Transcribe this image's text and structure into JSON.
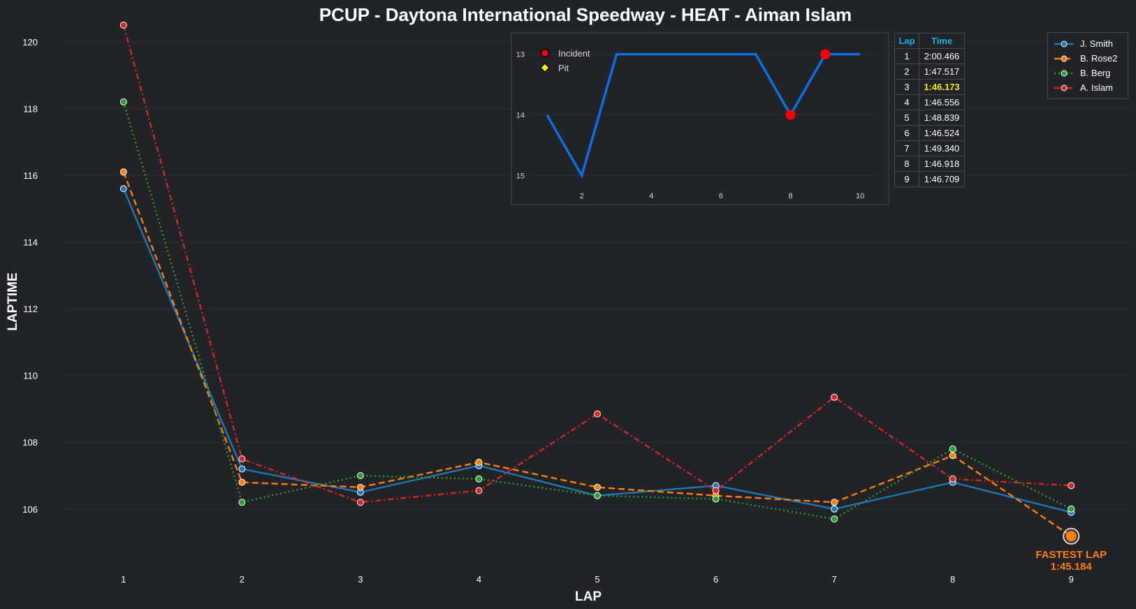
{
  "colors": {
    "background": "#212327",
    "grid": "#2c2f34",
    "table_header": "#18b4e6",
    "best_lap": "#f5e61a",
    "fastest_lap": "#ff7f0e",
    "inset_line": "#0d6fe8",
    "incident": "#ff0000",
    "pit": "#ffee00"
  },
  "chart_data": [
    {
      "type": "line",
      "title": "PCUP - Daytona International Speedway - HEAT - Aiman Islam",
      "xlabel": "LAP",
      "ylabel": "LAPTIME",
      "x": [
        1,
        2,
        3,
        4,
        5,
        6,
        7,
        8,
        9
      ],
      "xlim": [
        0.5,
        9.5
      ],
      "ylim": [
        104.3,
        120.5
      ],
      "y_ticks": [
        106,
        108,
        110,
        112,
        114,
        116,
        118,
        120
      ],
      "legend_position": "top-right",
      "series": [
        {
          "name": "J. Smith",
          "color": "#1f77b4",
          "dash": "solid",
          "values": [
            115.6,
            107.2,
            106.5,
            107.3,
            106.4,
            106.7,
            106.0,
            106.8,
            105.9
          ]
        },
        {
          "name": "B. Rose2",
          "color": "#ff7f0e",
          "dash": "dashed",
          "values": [
            116.1,
            106.8,
            106.65,
            107.4,
            106.65,
            106.4,
            106.2,
            107.6,
            105.184
          ]
        },
        {
          "name": "B. Berg",
          "color": "#2ca02c",
          "dash": "dotted",
          "values": [
            118.2,
            106.2,
            107.0,
            106.9,
            106.4,
            106.3,
            105.7,
            107.8,
            106.0
          ]
        },
        {
          "name": "A. Islam",
          "color": "#d62728",
          "dash": "dashdot",
          "values": [
            120.5,
            107.5,
            106.2,
            106.55,
            108.85,
            106.55,
            109.35,
            106.9,
            106.7
          ]
        }
      ],
      "annotations": [
        {
          "text": "FASTEST LAP",
          "value_text": "1:45.184",
          "x": 9,
          "y": 105.184,
          "series": "B. Rose2"
        }
      ]
    },
    {
      "type": "line",
      "title": "",
      "xlabel": "",
      "ylabel": "",
      "x": [
        1,
        2,
        3,
        4,
        5,
        6,
        7,
        8,
        9,
        10
      ],
      "values": [
        14,
        15,
        13,
        13,
        13,
        13,
        13,
        14,
        13,
        13
      ],
      "xlim": [
        0.5,
        10.5
      ],
      "ylim": [
        15.1,
        12.9
      ],
      "y_inverted": true,
      "x_ticks": [
        2,
        4,
        6,
        8,
        10
      ],
      "y_ticks": [
        13,
        14,
        15
      ],
      "legend": [
        {
          "label": "Incident",
          "marker": "circle",
          "color": "#ff0000"
        },
        {
          "label": "Pit",
          "marker": "diamond",
          "color": "#ffee00"
        }
      ],
      "incidents": [
        {
          "x": 8,
          "y": 14
        },
        {
          "x": 9,
          "y": 13
        }
      ],
      "pits": []
    }
  ],
  "lap_table": {
    "headers": [
      "Lap",
      "Time"
    ],
    "rows": [
      [
        "1",
        "2:00.466"
      ],
      [
        "2",
        "1:47.517"
      ],
      [
        "3",
        "1:46.173"
      ],
      [
        "4",
        "1:46.556"
      ],
      [
        "5",
        "1:48.839"
      ],
      [
        "6",
        "1:46.524"
      ],
      [
        "7",
        "1:49.340"
      ],
      [
        "8",
        "1:46.918"
      ],
      [
        "9",
        "1:46.709"
      ]
    ],
    "best_row_index": 2
  }
}
